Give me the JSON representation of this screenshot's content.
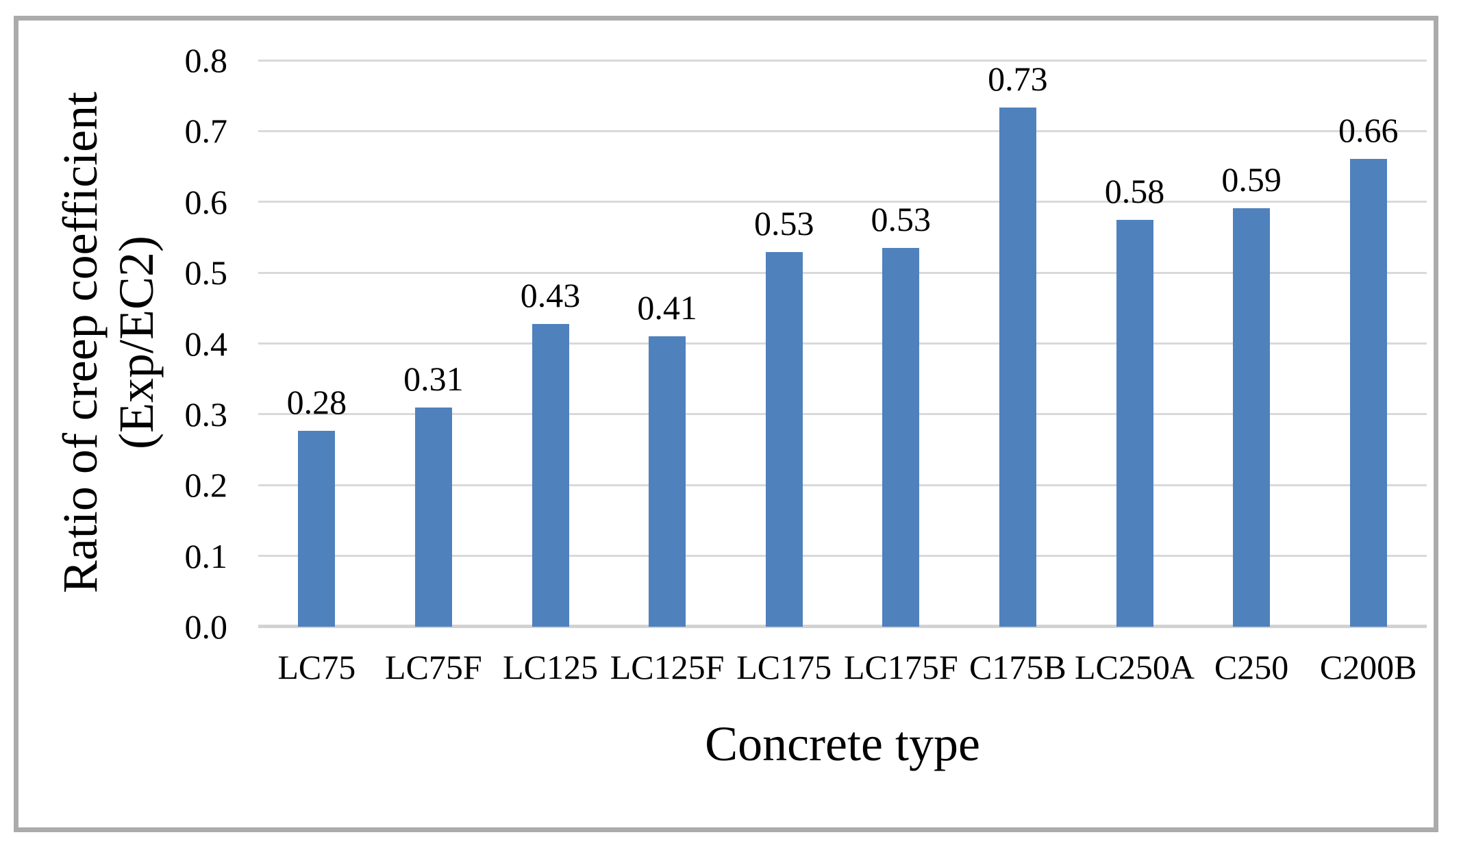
{
  "chart_data": {
    "type": "bar",
    "title": "",
    "xlabel": "Concrete type",
    "ylabel": "Ratio of creep coefficient (Exp/EC2)",
    "ylabel_lines": [
      "Ratio of creep coefficient",
      "(Exp/EC2)"
    ],
    "categories": [
      "LC75",
      "LC75F",
      "LC125",
      "LC125F",
      "LC175",
      "LC175F",
      "C175B",
      "LC250A",
      "C250",
      "C200B"
    ],
    "values": [
      0.28,
      0.31,
      0.43,
      0.41,
      0.53,
      0.53,
      0.73,
      0.58,
      0.59,
      0.66
    ],
    "value_labels": [
      "0.28",
      "0.31",
      "0.43",
      "0.41",
      "0.53",
      "0.53",
      "0.73",
      "0.58",
      "0.59",
      "0.66"
    ],
    "bar_heights_precise": [
      0.277,
      0.31,
      0.428,
      0.41,
      0.529,
      0.535,
      0.733,
      0.575,
      0.591,
      0.661
    ],
    "ytick_labels": [
      "0.0",
      "0.1",
      "0.2",
      "0.3",
      "0.4",
      "0.5",
      "0.6",
      "0.7",
      "0.8"
    ],
    "ylim": [
      0,
      0.8
    ],
    "grid": "horizontal",
    "legend_position": "none",
    "bar_color": "#4F81BD",
    "gridline_color": "#D9D9D9",
    "baseline_color": "#D2D2D2",
    "frame_border_color": "#ABABAB",
    "text_color": "#000000"
  }
}
